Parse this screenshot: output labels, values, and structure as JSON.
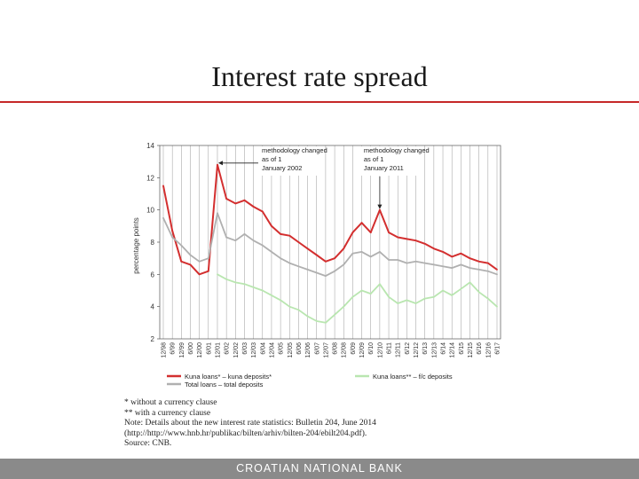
{
  "slide": {
    "title": "Interest rate spread",
    "footer": "CROATIAN NATIONAL BANK"
  },
  "notes": [
    "* without a currency clause",
    "** with a currency clause",
    "Note: Details about the new interest rate statistics: Bulletin 204, June 2014",
    "(http://http://www.hnb.hr/publikac/bilten/arhiv/bilten-204/ebilt204.pdf).",
    "Source: CNB."
  ],
  "colors": {
    "kuna_spread": "#d32f2f",
    "total_spread": "#b0b0b0",
    "fx_spread": "#b9e6b0",
    "title_rule": "#c62828",
    "footer_bg": "#8a8a8a"
  },
  "chart_data": {
    "type": "line",
    "ylabel": "percentage points",
    "ylim": [
      2,
      14
    ],
    "yticks": [
      2,
      4,
      6,
      8,
      10,
      12,
      14
    ],
    "x_tick_labels": [
      "12/98",
      "6/99",
      "12/99",
      "6/00",
      "12/00",
      "6/01",
      "12/01",
      "6/02",
      "12/02",
      "6/03",
      "12/03",
      "6/04",
      "12/04",
      "6/05",
      "12/05",
      "6/06",
      "12/06",
      "6/07",
      "12/07",
      "6/08",
      "12/08",
      "6/09",
      "12/09",
      "6/10",
      "12/10",
      "6/11",
      "12/11",
      "6/12",
      "12/12",
      "6/13",
      "12/13",
      "6/14",
      "12/14",
      "6/15",
      "12/15",
      "6/16",
      "12/16",
      "6/17"
    ],
    "grid": "vertical",
    "annotations": [
      {
        "label": "methodology changed as of 1 January 2002",
        "x": "12/01",
        "y": 12.8
      },
      {
        "label": "methodology changed as of 1 January 2011",
        "x": "12/10",
        "y": 10.0
      }
    ],
    "legend": [
      {
        "label": "Kuna loans* – kuna deposits*",
        "series": "Kuna loans* – kuna deposits*"
      },
      {
        "label": "Total loans – total deposits",
        "series": "Total loans – total deposits"
      },
      {
        "label": "Kuna loans** – f/c deposits",
        "series": "Kuna loans** – f/c deposits"
      }
    ],
    "series": [
      {
        "name": "Kuna loans* – kuna deposits*",
        "points": [
          [
            "12/98",
            11.5
          ],
          [
            "6/99",
            8.7
          ],
          [
            "12/99",
            6.8
          ],
          [
            "6/00",
            6.6
          ],
          [
            "12/00",
            6.0
          ],
          [
            "6/01",
            6.2
          ],
          [
            "12/01",
            12.8
          ],
          [
            "6/02",
            10.7
          ],
          [
            "12/02",
            10.4
          ],
          [
            "6/03",
            10.6
          ],
          [
            "12/03",
            10.2
          ],
          [
            "6/04",
            9.9
          ],
          [
            "12/04",
            9.0
          ],
          [
            "6/05",
            8.5
          ],
          [
            "12/05",
            8.4
          ],
          [
            "6/06",
            8.0
          ],
          [
            "12/06",
            7.6
          ],
          [
            "6/07",
            7.2
          ],
          [
            "12/07",
            6.8
          ],
          [
            "6/08",
            7.0
          ],
          [
            "12/08",
            7.6
          ],
          [
            "6/09",
            8.6
          ],
          [
            "12/09",
            9.2
          ],
          [
            "6/10",
            8.6
          ],
          [
            "12/10",
            10.0
          ],
          [
            "6/11",
            8.6
          ],
          [
            "12/11",
            8.3
          ],
          [
            "6/12",
            8.2
          ],
          [
            "12/12",
            8.1
          ],
          [
            "6/13",
            7.9
          ],
          [
            "12/13",
            7.6
          ],
          [
            "6/14",
            7.4
          ],
          [
            "12/14",
            7.1
          ],
          [
            "6/15",
            7.3
          ],
          [
            "12/15",
            7.0
          ],
          [
            "6/16",
            6.8
          ],
          [
            "12/16",
            6.7
          ],
          [
            "6/17",
            6.3
          ]
        ]
      },
      {
        "name": "Total loans – total deposits",
        "points": [
          [
            "12/98",
            9.5
          ],
          [
            "6/99",
            8.3
          ],
          [
            "12/99",
            7.8
          ],
          [
            "6/00",
            7.2
          ],
          [
            "12/00",
            6.8
          ],
          [
            "6/01",
            7.0
          ],
          [
            "12/01",
            9.8
          ],
          [
            "6/02",
            8.3
          ],
          [
            "12/02",
            8.1
          ],
          [
            "6/03",
            8.5
          ],
          [
            "12/03",
            8.1
          ],
          [
            "6/04",
            7.8
          ],
          [
            "12/04",
            7.4
          ],
          [
            "6/05",
            7.0
          ],
          [
            "12/05",
            6.7
          ],
          [
            "6/06",
            6.5
          ],
          [
            "12/06",
            6.3
          ],
          [
            "6/07",
            6.1
          ],
          [
            "12/07",
            5.9
          ],
          [
            "6/08",
            6.2
          ],
          [
            "12/08",
            6.6
          ],
          [
            "6/09",
            7.3
          ],
          [
            "12/09",
            7.4
          ],
          [
            "6/10",
            7.1
          ],
          [
            "12/10",
            7.4
          ],
          [
            "6/11",
            6.9
          ],
          [
            "12/11",
            6.9
          ],
          [
            "6/12",
            6.7
          ],
          [
            "12/12",
            6.8
          ],
          [
            "6/13",
            6.7
          ],
          [
            "12/13",
            6.6
          ],
          [
            "6/14",
            6.5
          ],
          [
            "12/14",
            6.4
          ],
          [
            "6/15",
            6.6
          ],
          [
            "12/15",
            6.4
          ],
          [
            "6/16",
            6.3
          ],
          [
            "12/16",
            6.2
          ],
          [
            "6/17",
            6.0
          ]
        ]
      },
      {
        "name": "Kuna loans** – f/c deposits",
        "points": [
          [
            "12/01",
            6.0
          ],
          [
            "6/02",
            5.7
          ],
          [
            "12/02",
            5.5
          ],
          [
            "6/03",
            5.4
          ],
          [
            "12/03",
            5.2
          ],
          [
            "6/04",
            5.0
          ],
          [
            "12/04",
            4.7
          ],
          [
            "6/05",
            4.4
          ],
          [
            "12/05",
            4.0
          ],
          [
            "6/06",
            3.8
          ],
          [
            "12/06",
            3.4
          ],
          [
            "6/07",
            3.1
          ],
          [
            "12/07",
            3.0
          ],
          [
            "6/08",
            3.5
          ],
          [
            "12/08",
            4.0
          ],
          [
            "6/09",
            4.6
          ],
          [
            "12/09",
            5.0
          ],
          [
            "6/10",
            4.8
          ],
          [
            "12/10",
            5.4
          ],
          [
            "6/11",
            4.6
          ],
          [
            "12/11",
            4.2
          ],
          [
            "6/12",
            4.4
          ],
          [
            "12/12",
            4.2
          ],
          [
            "6/13",
            4.5
          ],
          [
            "12/13",
            4.6
          ],
          [
            "6/14",
            5.0
          ],
          [
            "12/14",
            4.7
          ],
          [
            "6/15",
            5.1
          ],
          [
            "12/15",
            5.5
          ],
          [
            "6/16",
            4.9
          ],
          [
            "12/16",
            4.5
          ],
          [
            "6/17",
            4.0
          ]
        ]
      }
    ]
  }
}
